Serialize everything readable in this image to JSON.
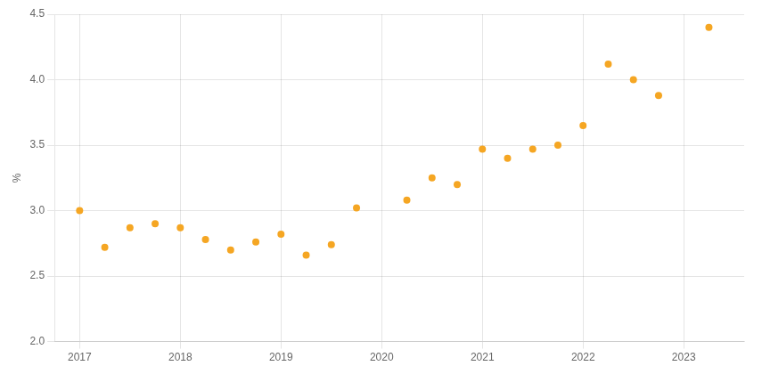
{
  "chart_data": {
    "type": "scatter",
    "ylabel": "%",
    "x": [
      2017.0,
      2017.25,
      2017.5,
      2017.75,
      2018.0,
      2018.25,
      2018.5,
      2018.75,
      2019.0,
      2019.25,
      2019.5,
      2019.75,
      2020.25,
      2020.5,
      2020.75,
      2021.0,
      2021.25,
      2021.5,
      2021.75,
      2022.0,
      2022.25,
      2022.5,
      2022.75,
      2023.25
    ],
    "values": [
      3.0,
      2.72,
      2.87,
      2.9,
      2.87,
      2.78,
      2.7,
      2.76,
      2.82,
      2.66,
      2.74,
      3.02,
      3.08,
      3.25,
      3.2,
      3.47,
      3.4,
      3.47,
      3.5,
      3.65,
      4.12,
      4.0,
      3.88,
      4.4
    ],
    "color": "#f5a623",
    "marker": "circle",
    "xlim": [
      2016.75,
      2023.6
    ],
    "xticks": [
      2017,
      2018,
      2019,
      2020,
      2021,
      2022,
      2023
    ],
    "ylim": [
      2.0,
      4.5
    ],
    "yticks": [
      {
        "value": 2.0,
        "label": "2.0"
      },
      {
        "value": 2.5,
        "label": "2.5"
      },
      {
        "value": 3.0,
        "label": "3.0"
      },
      {
        "value": 3.5,
        "label": "3.5"
      },
      {
        "value": 4.0,
        "label": "4.0"
      },
      {
        "value": 4.5,
        "label": "4.5"
      }
    ],
    "grid": true
  }
}
